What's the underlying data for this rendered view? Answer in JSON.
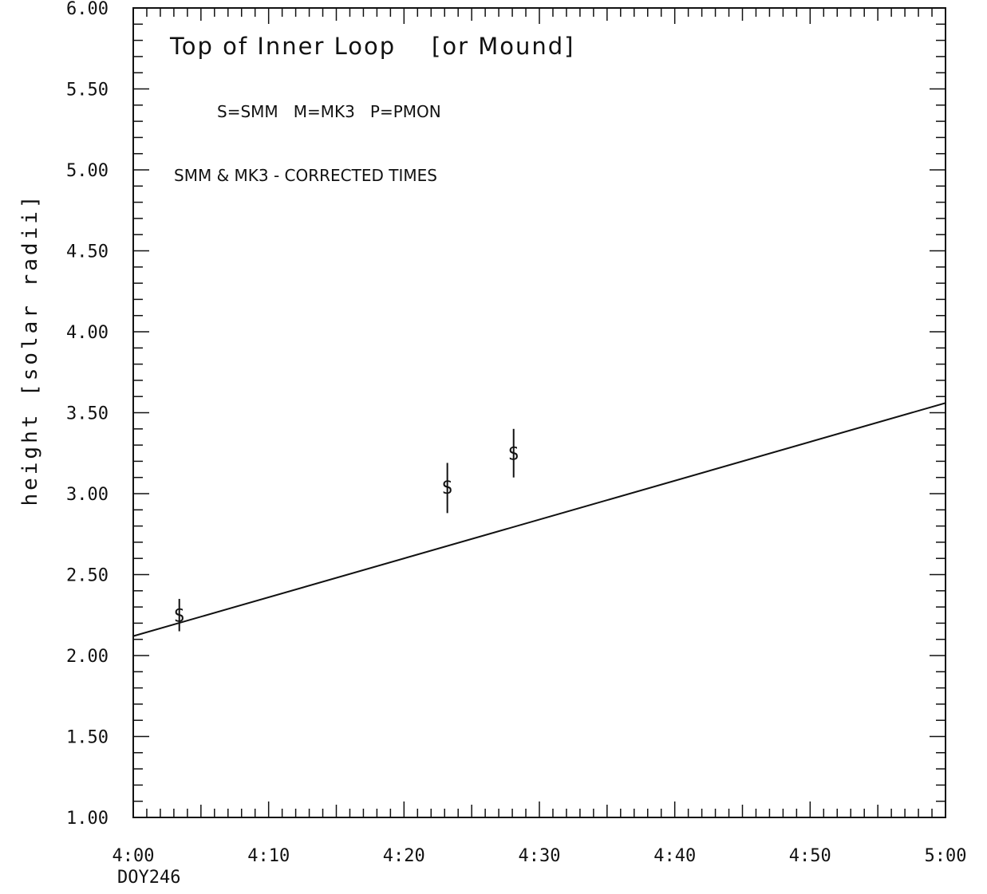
{
  "chart_data": {
    "type": "scatter",
    "title": "Top of Inner Loop    [or Mound]",
    "annotations": {
      "legend_key": "S=SMM   M=MK3   P=PMON",
      "note": "SMM & MK3 - CORRECTED TIMES"
    },
    "xlabel": "DOY246",
    "ylabel": "height [solar radii]",
    "xlim": [
      4.0,
      5.0
    ],
    "ylim": [
      1.0,
      6.0
    ],
    "x_tick_labels": [
      "4:00",
      "4:10",
      "4:20",
      "4:30",
      "4:40",
      "4:50",
      "5:00"
    ],
    "x_tick_values": [
      4.0,
      4.1667,
      4.3333,
      4.5,
      4.6667,
      4.8333,
      5.0
    ],
    "y_tick_labels": [
      "1.00",
      "1.50",
      "2.00",
      "2.50",
      "3.00",
      "3.50",
      "4.00",
      "4.50",
      "5.00",
      "5.50",
      "6.00"
    ],
    "y_tick_values": [
      1.0,
      1.5,
      2.0,
      2.5,
      3.0,
      3.5,
      4.0,
      4.5,
      5.0,
      5.5,
      6.0
    ],
    "grid": false,
    "series": [
      {
        "marker": "S",
        "points": [
          {
            "x": 4.0567,
            "y": 2.25,
            "err_low": 2.15,
            "err_high": 2.35
          },
          {
            "x": 4.3867,
            "y": 3.04,
            "err_low": 2.88,
            "err_high": 3.19
          },
          {
            "x": 4.4683,
            "y": 3.25,
            "err_low": 3.1,
            "err_high": 3.4
          }
        ]
      }
    ],
    "fit_line": {
      "x": [
        4.0,
        5.0
      ],
      "y": [
        2.12,
        3.56
      ]
    }
  }
}
